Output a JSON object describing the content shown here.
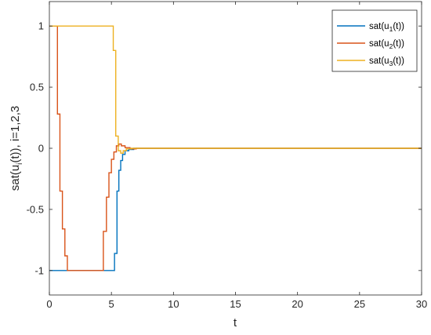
{
  "chart_data": {
    "type": "line",
    "xlabel": "t",
    "ylabel": "sat(u_i(t)), i=1,2,3",
    "xlim": [
      0,
      30
    ],
    "ylim": [
      -1.2,
      1.2
    ],
    "x_ticks": [
      "0",
      "5",
      "10",
      "15",
      "20",
      "25",
      "30"
    ],
    "y_ticks": [
      "-1",
      "-0.5",
      "0",
      "0.5",
      "1"
    ],
    "grid": false,
    "legend_position": "top-right",
    "step_plot": true,
    "legend": [
      "sat(u1(t))",
      "sat(u2(t))",
      "sat(u3(t))"
    ],
    "series": [
      {
        "name": "sat(u1(t))",
        "color": "#0072BD",
        "points": [
          [
            0,
            -1
          ],
          [
            5.25,
            -1
          ],
          [
            5.25,
            -0.86
          ],
          [
            5.45,
            -0.86
          ],
          [
            5.45,
            -0.35
          ],
          [
            5.6,
            -0.35
          ],
          [
            5.6,
            -0.18
          ],
          [
            5.75,
            -0.18
          ],
          [
            5.75,
            -0.1
          ],
          [
            5.9,
            -0.1
          ],
          [
            5.9,
            -0.05
          ],
          [
            6.1,
            -0.05
          ],
          [
            6.1,
            -0.02
          ],
          [
            6.4,
            -0.02
          ],
          [
            6.4,
            -0.01
          ],
          [
            6.8,
            -0.01
          ],
          [
            6.8,
            0
          ],
          [
            30,
            0
          ]
        ]
      },
      {
        "name": "sat(u2(t))",
        "color": "#D95319",
        "points": [
          [
            0,
            1
          ],
          [
            0.65,
            1
          ],
          [
            0.65,
            0.28
          ],
          [
            0.85,
            0.28
          ],
          [
            0.85,
            -0.35
          ],
          [
            1.05,
            -0.35
          ],
          [
            1.05,
            -0.66
          ],
          [
            1.25,
            -0.66
          ],
          [
            1.25,
            -0.88
          ],
          [
            1.45,
            -0.88
          ],
          [
            1.45,
            -1
          ],
          [
            4.35,
            -1
          ],
          [
            4.35,
            -0.68
          ],
          [
            4.6,
            -0.68
          ],
          [
            4.6,
            -0.4
          ],
          [
            4.8,
            -0.4
          ],
          [
            4.8,
            -0.2
          ],
          [
            5.0,
            -0.2
          ],
          [
            5.0,
            -0.09
          ],
          [
            5.2,
            -0.09
          ],
          [
            5.2,
            -0.03
          ],
          [
            5.4,
            -0.03
          ],
          [
            5.4,
            0.02
          ],
          [
            5.6,
            0.02
          ],
          [
            5.6,
            0.035
          ],
          [
            5.8,
            0.035
          ],
          [
            5.8,
            0.02
          ],
          [
            6.1,
            0.02
          ],
          [
            6.1,
            0.005
          ],
          [
            6.5,
            0.005
          ],
          [
            6.5,
            -0.005
          ],
          [
            7.0,
            -0.005
          ],
          [
            7.0,
            0
          ],
          [
            30,
            0
          ]
        ]
      },
      {
        "name": "sat(u3(t))",
        "color": "#EDB120",
        "points": [
          [
            0,
            1
          ],
          [
            5.15,
            1
          ],
          [
            5.15,
            0.8
          ],
          [
            5.35,
            0.8
          ],
          [
            5.35,
            0.1
          ],
          [
            5.55,
            0.1
          ],
          [
            5.55,
            -0.02
          ],
          [
            5.75,
            -0.02
          ],
          [
            5.75,
            -0.04
          ],
          [
            5.95,
            -0.04
          ],
          [
            5.95,
            -0.02
          ],
          [
            6.2,
            -0.02
          ],
          [
            6.2,
            -0.005
          ],
          [
            6.6,
            -0.005
          ],
          [
            6.6,
            0
          ],
          [
            30,
            0
          ]
        ]
      }
    ]
  }
}
